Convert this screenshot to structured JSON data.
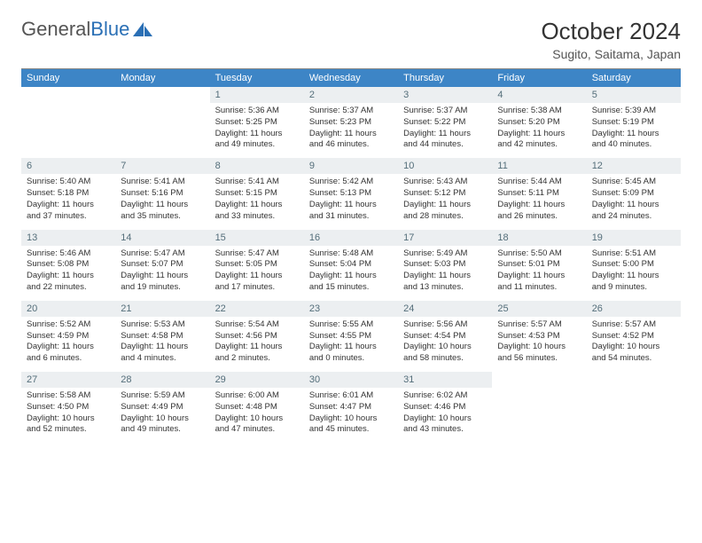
{
  "brand": {
    "part1": "General",
    "part2": "Blue"
  },
  "title": "October 2024",
  "location": "Sugito, Saitama, Japan",
  "dayNames": [
    "Sunday",
    "Monday",
    "Tuesday",
    "Wednesday",
    "Thursday",
    "Friday",
    "Saturday"
  ],
  "colors": {
    "headerBg": "#3d85c6",
    "headerText": "#ffffff",
    "dayNumBg": "#eceff1",
    "dayNumText": "#546e7a",
    "brandBlue": "#2a6fb5"
  },
  "weeks": [
    [
      null,
      null,
      {
        "n": 1,
        "sr": "5:36 AM",
        "ss": "5:25 PM",
        "dl": "11 hours and 49 minutes."
      },
      {
        "n": 2,
        "sr": "5:37 AM",
        "ss": "5:23 PM",
        "dl": "11 hours and 46 minutes."
      },
      {
        "n": 3,
        "sr": "5:37 AM",
        "ss": "5:22 PM",
        "dl": "11 hours and 44 minutes."
      },
      {
        "n": 4,
        "sr": "5:38 AM",
        "ss": "5:20 PM",
        "dl": "11 hours and 42 minutes."
      },
      {
        "n": 5,
        "sr": "5:39 AM",
        "ss": "5:19 PM",
        "dl": "11 hours and 40 minutes."
      }
    ],
    [
      {
        "n": 6,
        "sr": "5:40 AM",
        "ss": "5:18 PM",
        "dl": "11 hours and 37 minutes."
      },
      {
        "n": 7,
        "sr": "5:41 AM",
        "ss": "5:16 PM",
        "dl": "11 hours and 35 minutes."
      },
      {
        "n": 8,
        "sr": "5:41 AM",
        "ss": "5:15 PM",
        "dl": "11 hours and 33 minutes."
      },
      {
        "n": 9,
        "sr": "5:42 AM",
        "ss": "5:13 PM",
        "dl": "11 hours and 31 minutes."
      },
      {
        "n": 10,
        "sr": "5:43 AM",
        "ss": "5:12 PM",
        "dl": "11 hours and 28 minutes."
      },
      {
        "n": 11,
        "sr": "5:44 AM",
        "ss": "5:11 PM",
        "dl": "11 hours and 26 minutes."
      },
      {
        "n": 12,
        "sr": "5:45 AM",
        "ss": "5:09 PM",
        "dl": "11 hours and 24 minutes."
      }
    ],
    [
      {
        "n": 13,
        "sr": "5:46 AM",
        "ss": "5:08 PM",
        "dl": "11 hours and 22 minutes."
      },
      {
        "n": 14,
        "sr": "5:47 AM",
        "ss": "5:07 PM",
        "dl": "11 hours and 19 minutes."
      },
      {
        "n": 15,
        "sr": "5:47 AM",
        "ss": "5:05 PM",
        "dl": "11 hours and 17 minutes."
      },
      {
        "n": 16,
        "sr": "5:48 AM",
        "ss": "5:04 PM",
        "dl": "11 hours and 15 minutes."
      },
      {
        "n": 17,
        "sr": "5:49 AM",
        "ss": "5:03 PM",
        "dl": "11 hours and 13 minutes."
      },
      {
        "n": 18,
        "sr": "5:50 AM",
        "ss": "5:01 PM",
        "dl": "11 hours and 11 minutes."
      },
      {
        "n": 19,
        "sr": "5:51 AM",
        "ss": "5:00 PM",
        "dl": "11 hours and 9 minutes."
      }
    ],
    [
      {
        "n": 20,
        "sr": "5:52 AM",
        "ss": "4:59 PM",
        "dl": "11 hours and 6 minutes."
      },
      {
        "n": 21,
        "sr": "5:53 AM",
        "ss": "4:58 PM",
        "dl": "11 hours and 4 minutes."
      },
      {
        "n": 22,
        "sr": "5:54 AM",
        "ss": "4:56 PM",
        "dl": "11 hours and 2 minutes."
      },
      {
        "n": 23,
        "sr": "5:55 AM",
        "ss": "4:55 PM",
        "dl": "11 hours and 0 minutes."
      },
      {
        "n": 24,
        "sr": "5:56 AM",
        "ss": "4:54 PM",
        "dl": "10 hours and 58 minutes."
      },
      {
        "n": 25,
        "sr": "5:57 AM",
        "ss": "4:53 PM",
        "dl": "10 hours and 56 minutes."
      },
      {
        "n": 26,
        "sr": "5:57 AM",
        "ss": "4:52 PM",
        "dl": "10 hours and 54 minutes."
      }
    ],
    [
      {
        "n": 27,
        "sr": "5:58 AM",
        "ss": "4:50 PM",
        "dl": "10 hours and 52 minutes."
      },
      {
        "n": 28,
        "sr": "5:59 AM",
        "ss": "4:49 PM",
        "dl": "10 hours and 49 minutes."
      },
      {
        "n": 29,
        "sr": "6:00 AM",
        "ss": "4:48 PM",
        "dl": "10 hours and 47 minutes."
      },
      {
        "n": 30,
        "sr": "6:01 AM",
        "ss": "4:47 PM",
        "dl": "10 hours and 45 minutes."
      },
      {
        "n": 31,
        "sr": "6:02 AM",
        "ss": "4:46 PM",
        "dl": "10 hours and 43 minutes."
      },
      null,
      null
    ]
  ],
  "labels": {
    "sunrise": "Sunrise:",
    "sunset": "Sunset:",
    "daylight": "Daylight:"
  }
}
